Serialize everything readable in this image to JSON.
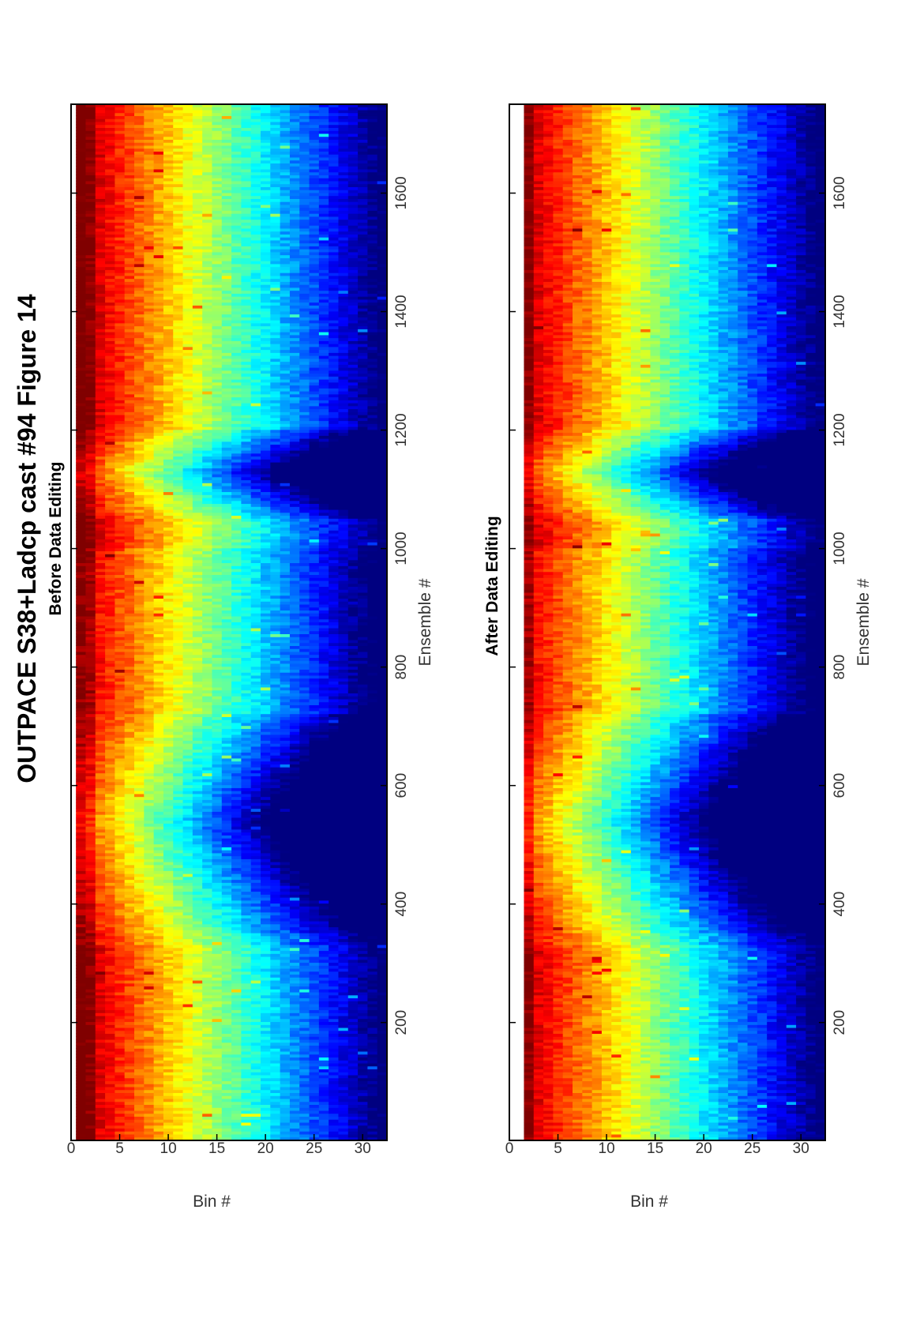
{
  "figure": {
    "title": "OUTPACE S38+Ladcp cast #94  Figure 14",
    "orientation": "rotated-90-ccw"
  },
  "chart_data": [
    {
      "type": "heatmap",
      "title": "Before Data Editing",
      "xlabel": "Ensemble #",
      "ylabel": "Bin #",
      "xlim": [
        1,
        1750
      ],
      "ylim": [
        0,
        32.5
      ],
      "y_reversed": true,
      "x_ticks": [
        200,
        400,
        600,
        800,
        1000,
        1200,
        1400,
        1600
      ],
      "y_ticks": [
        0,
        5,
        10,
        15,
        20,
        25,
        30
      ],
      "colormap": "jet",
      "bins": 32,
      "ensembles": 1750,
      "features": {
        "profile_bins_valid": 30,
        "low_signal_ensembles": [
          [
            350,
            720
          ],
          [
            1050,
            1200
          ]
        ],
        "surface_strong_ensembles": [
          [
            1,
            330
          ],
          [
            1000,
            1750
          ]
        ]
      }
    },
    {
      "type": "heatmap",
      "title": "After Data Editing",
      "xlabel": "Ensemble #",
      "ylabel": "Bin #",
      "xlim": [
        1,
        1750
      ],
      "ylim": [
        0,
        32.5
      ],
      "y_reversed": true,
      "x_ticks": [
        200,
        400,
        600,
        800,
        1000,
        1200,
        1400,
        1600
      ],
      "y_ticks": [
        0,
        5,
        10,
        15,
        20,
        25,
        30
      ],
      "colormap": "jet",
      "bins": 32,
      "ensembles": 1750,
      "features": {
        "first_bin_removed": true,
        "low_signal_ensembles": [
          [
            350,
            720
          ],
          [
            1050,
            1200
          ]
        ],
        "surface_strong_ensembles": [
          [
            1,
            330
          ],
          [
            1000,
            1750
          ]
        ]
      }
    }
  ],
  "colors": {
    "frame": "#000000",
    "background": "#ffffff",
    "text": "#333333"
  }
}
